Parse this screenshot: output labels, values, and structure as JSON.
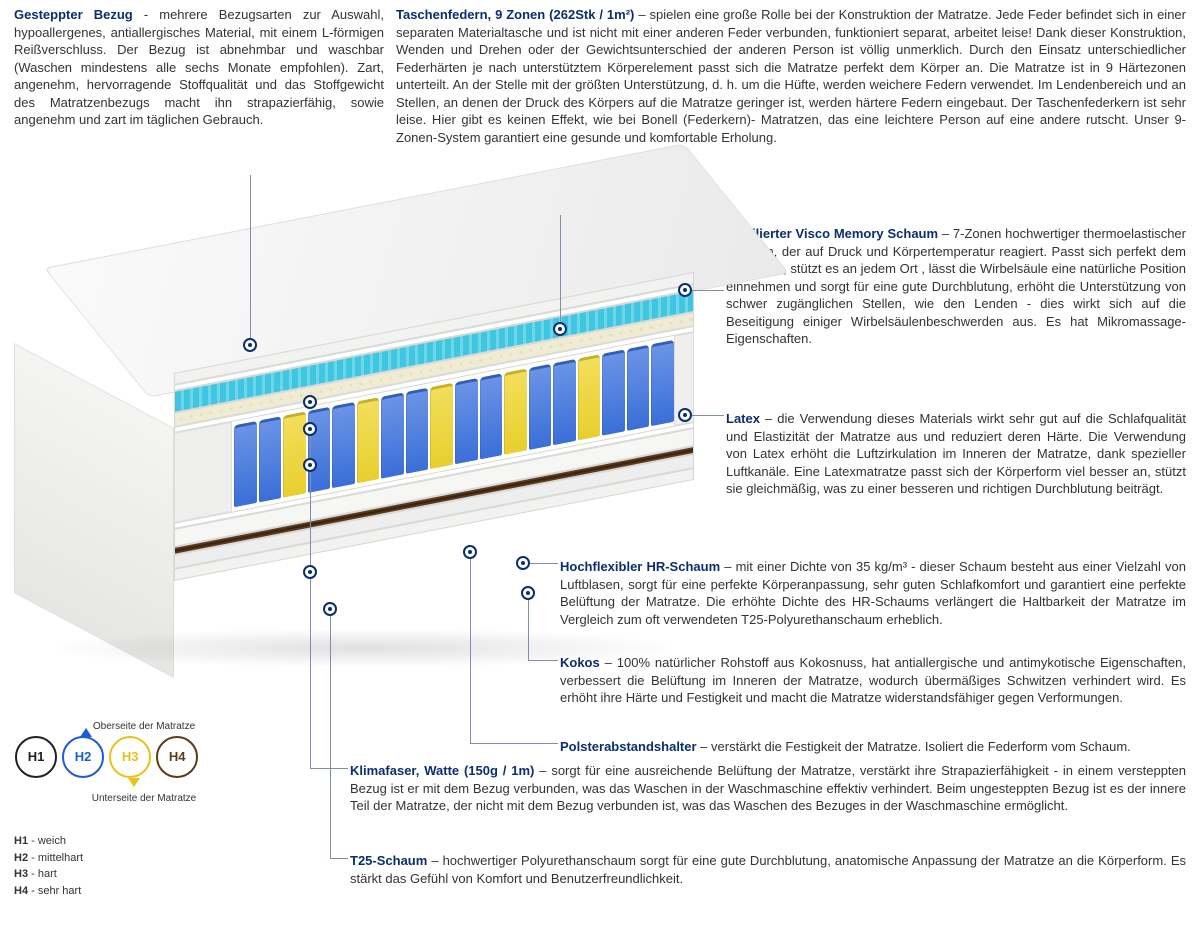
{
  "colors": {
    "title": "#0b2e6f",
    "text": "#333333",
    "lead": "#7f8fa6",
    "h1": "#222222",
    "h2": "#1e5bd6",
    "h3": "#e8c11a",
    "h4": "#5a3b1a",
    "spring_blue": "#3a6fd8",
    "spring_yellow": "#e8cf2e",
    "visco_teal": "#3fc6e0",
    "latex_cream": "#f0ecd4",
    "hr_white": "#f6f6f4",
    "kokos": "#4a2e16",
    "cover": "#f2f2f0",
    "base_grey": "#d9d9d9"
  },
  "top_left": {
    "title": "Gesteppter Bezug",
    "sep": " - ",
    "text": "mehrere Bezugsarten zur Auswahl, hypoallergenes, antiallergisches Material, mit einem L-förmigen Reißverschluss. Der Bezug ist abnehmbar und waschbar (Waschen mindestens alle sechs Monate empfohlen). Zart, angenehm, hervorragende Stoffqualität und das Stoffgewicht des Matratzenbezugs macht ihn strapazierfähig, sowie angenehm und zart im täglichen Gebrauch."
  },
  "top_right": {
    "title": "Taschenfedern, 9 Zonen (262Stk / 1m²)",
    "sep": " – ",
    "text": "spielen eine große Rolle bei der Konstruktion der Matratze. Jede Feder befindet sich in einer separaten Materialtasche und ist nicht mit einer anderen Feder verbunden, funktioniert separat, arbeitet leise! Dank dieser Konstruktion, Wenden und Drehen oder der Gewichtsunterschied der anderen Person ist völlig unmerklich. Durch den Einsatz unterschiedlicher Federhärten je nach unterstütztem Körperelement passt sich die Matratze perfekt dem Körper an. Die Matratze ist in 9 Härtezonen unterteilt. An der Stelle mit der größten Unterstützung, d. h. um die Hüfte, werden weichere Federn verwendet. Im Lendenbereich und an Stellen, an denen der Druck des Körpers auf die Matratze geringer ist, werden härtere Federn eingebaut. Der Taschenfederkern ist sehr leise. Hier gibt es keinen Effekt, wie bei Bonell (Federkern)- Matratzen, das eine leichtere Person auf eine andere rutscht. Unser 9-Zonen-System garantiert eine gesunde und komfortable Erholung."
  },
  "descs": {
    "visco": {
      "title": "Profilierter Visco Memory Schaum",
      "sep": " – ",
      "text": "7-Zonen hochwertiger thermoelastischer Schaum, der auf Druck und Körpertemperatur reagiert. Passt sich perfekt dem Körper an, stützt es an jedem Ort , lässt die Wirbelsäule eine natürliche Position einnehmen und sorgt für eine gute Durchblutung, erhöht die Unterstützung von schwer zugänglichen Stellen, wie den Lenden - dies wirkt sich auf die Beseitigung einiger Wirbelsäulenbeschwerden aus. Es hat Mikromassage-Eigenschaften."
    },
    "latex": {
      "title": "Latex",
      "sep": " – ",
      "text": "die Verwendung dieses Materials wirkt sehr gut auf die Schlafqualität und Elastizität der Matratze aus und reduziert deren Härte. Die Verwendung von Latex erhöht die Luftzirkulation im Inneren der Matratze, dank spezieller Luftkanäle. Eine Latexmatratze passt sich der Körperform viel besser an, stützt sie gleichmäßig, was zu einer besseren und richtigen Durchblutung beiträgt."
    },
    "hr": {
      "title": "Hochflexibler HR-Schaum",
      "sep": " – ",
      "text": "mit einer Dichte von 35 kg/m³ - dieser Schaum besteht aus einer Vielzahl von Luftblasen, sorgt für eine perfekte Körperanpassung, sehr guten Schlafkomfort und garantiert eine perfekte Belüftung der Matratze. Die erhöhte Dichte des HR-Schaums verlängert die Haltbarkeit der Matratze im Vergleich zum oft verwendeten T25-Polyurethanschaum erheblich."
    },
    "kokos": {
      "title": "Kokos",
      "sep": " – ",
      "text": "100% natürlicher Rohstoff aus Kokosnuss, hat antiallergische und antimykotische Eigenschaften, verbessert die Belüftung im Inneren der Matratze, wodurch übermäßiges Schwitzen verhindert wird. Es erhöht ihre Härte und Festigkeit und macht die Matratze widerstandsfähiger gegen Verformungen."
    },
    "polst": {
      "title": "Polsterabstandshalter",
      "sep": " – ",
      "text": "verstärkt die Festigkeit der Matratze. Isoliert die Federform vom Schaum."
    },
    "klima": {
      "title": "Klimafaser, Watte (150g / 1m)",
      "sep": " – ",
      "text": "sorgt für eine ausreichende Belüftung der Matratze, verstärkt ihre Strapazierfähigkeit - in einem versteppten Bezug ist er mit dem Bezug verbunden, was das Waschen in der Waschmaschine effektiv verhindert. Beim ungesteppten Bezug ist es der innere Teil der Matratze, der nicht mit dem Bezug verbunden ist, was das Waschen des Bezuges in der Waschmaschine ermöglicht."
    },
    "t25": {
      "title": "T25-Schaum",
      "sep": " – ",
      "text": "hochwertiger Polyurethanschaum sorgt für eine gute Durchblutung, anatomische Anpassung der Matratze an die Körperform. Es stärkt das Gefühl von Komfort und Benutzerfreundlichkeit."
    }
  },
  "legend": {
    "top_label": "Oberseite der Matratze",
    "bottom_label": "Unterseite der Matratze",
    "items": [
      {
        "code": "H1",
        "label": "weich"
      },
      {
        "code": "H2",
        "label": "mittelhart"
      },
      {
        "code": "H3",
        "label": "hart"
      },
      {
        "code": "H4",
        "label": "sehr hart"
      }
    ]
  },
  "mattress": {
    "spring_zones": [
      "b",
      "b",
      "y",
      "b",
      "b",
      "y",
      "b",
      "b",
      "y",
      "b",
      "b",
      "y",
      "b",
      "b",
      "y",
      "b",
      "b",
      "b"
    ],
    "layers_front": [
      {
        "name": "cover-top",
        "h": 12,
        "color": "#f2f2f0"
      },
      {
        "name": "klima",
        "h": 6,
        "color": "#ffffff"
      },
      {
        "name": "visco",
        "h": 22,
        "color": "#3fc6e0"
      },
      {
        "name": "latex",
        "h": 14,
        "color": "#f0ecd4"
      },
      {
        "name": "polster-top",
        "h": 6,
        "color": "#ffffff"
      },
      {
        "name": "springs",
        "h": 90,
        "color": "transparent"
      },
      {
        "name": "polster-bot",
        "h": 6,
        "color": "#ffffff"
      },
      {
        "name": "hr",
        "h": 18,
        "color": "#f6f6f4"
      },
      {
        "name": "kokos",
        "h": 8,
        "color": "#4a2e16"
      },
      {
        "name": "t25",
        "h": 14,
        "color": "#eeeeee"
      },
      {
        "name": "cover-bot",
        "h": 12,
        "color": "#f2f2f0"
      }
    ]
  }
}
